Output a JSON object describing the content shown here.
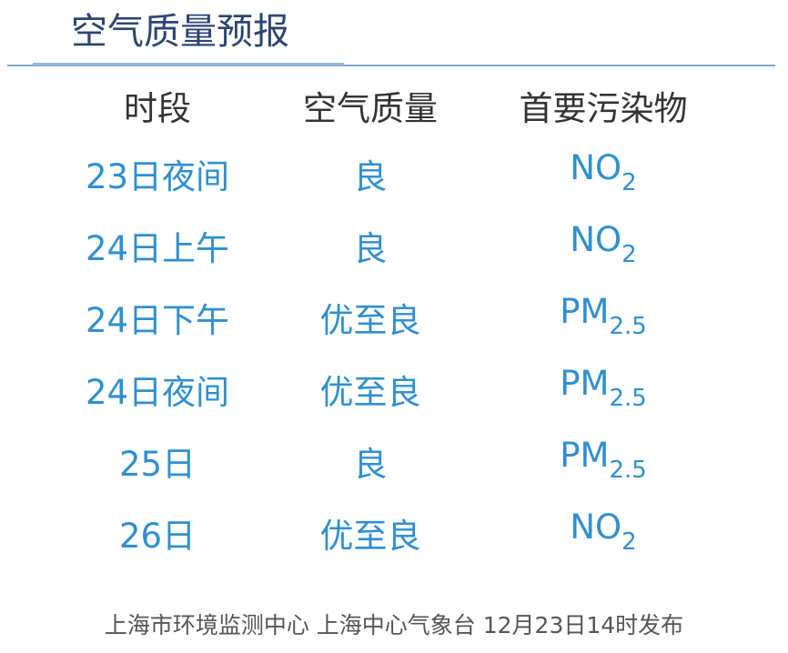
{
  "title": "空气质量预报",
  "headers": [
    "时段",
    "空气质量",
    "首要污染物"
  ],
  "rows": [
    {
      "period": "23日夜间",
      "quality": "良",
      "pollutant": "NO",
      "pollutant_sub": "2"
    },
    {
      "period": "24日上午",
      "quality": "良",
      "pollutant": "NO",
      "pollutant_sub": "2"
    },
    {
      "period": "24日下午",
      "quality": "优至良",
      "pollutant": "PM",
      "pollutant_sub": "2.5"
    },
    {
      "period": "24日夜间",
      "quality": "优至良",
      "pollutant": "PM",
      "pollutant_sub": "2.5"
    },
    {
      "period": "25日",
      "quality": "良",
      "pollutant": "PM",
      "pollutant_sub": "2.5"
    },
    {
      "period": "26日",
      "quality": "优至良",
      "pollutant": "NO",
      "pollutant_sub": "2"
    }
  ],
  "footer": "上海市环境监测中心 上海中心气象台 12月23日14时发布",
  "colors": {
    "title": "#2c4470",
    "value": "#2f8fd0",
    "header": "#333333",
    "rule": "#7fa6c9"
  }
}
